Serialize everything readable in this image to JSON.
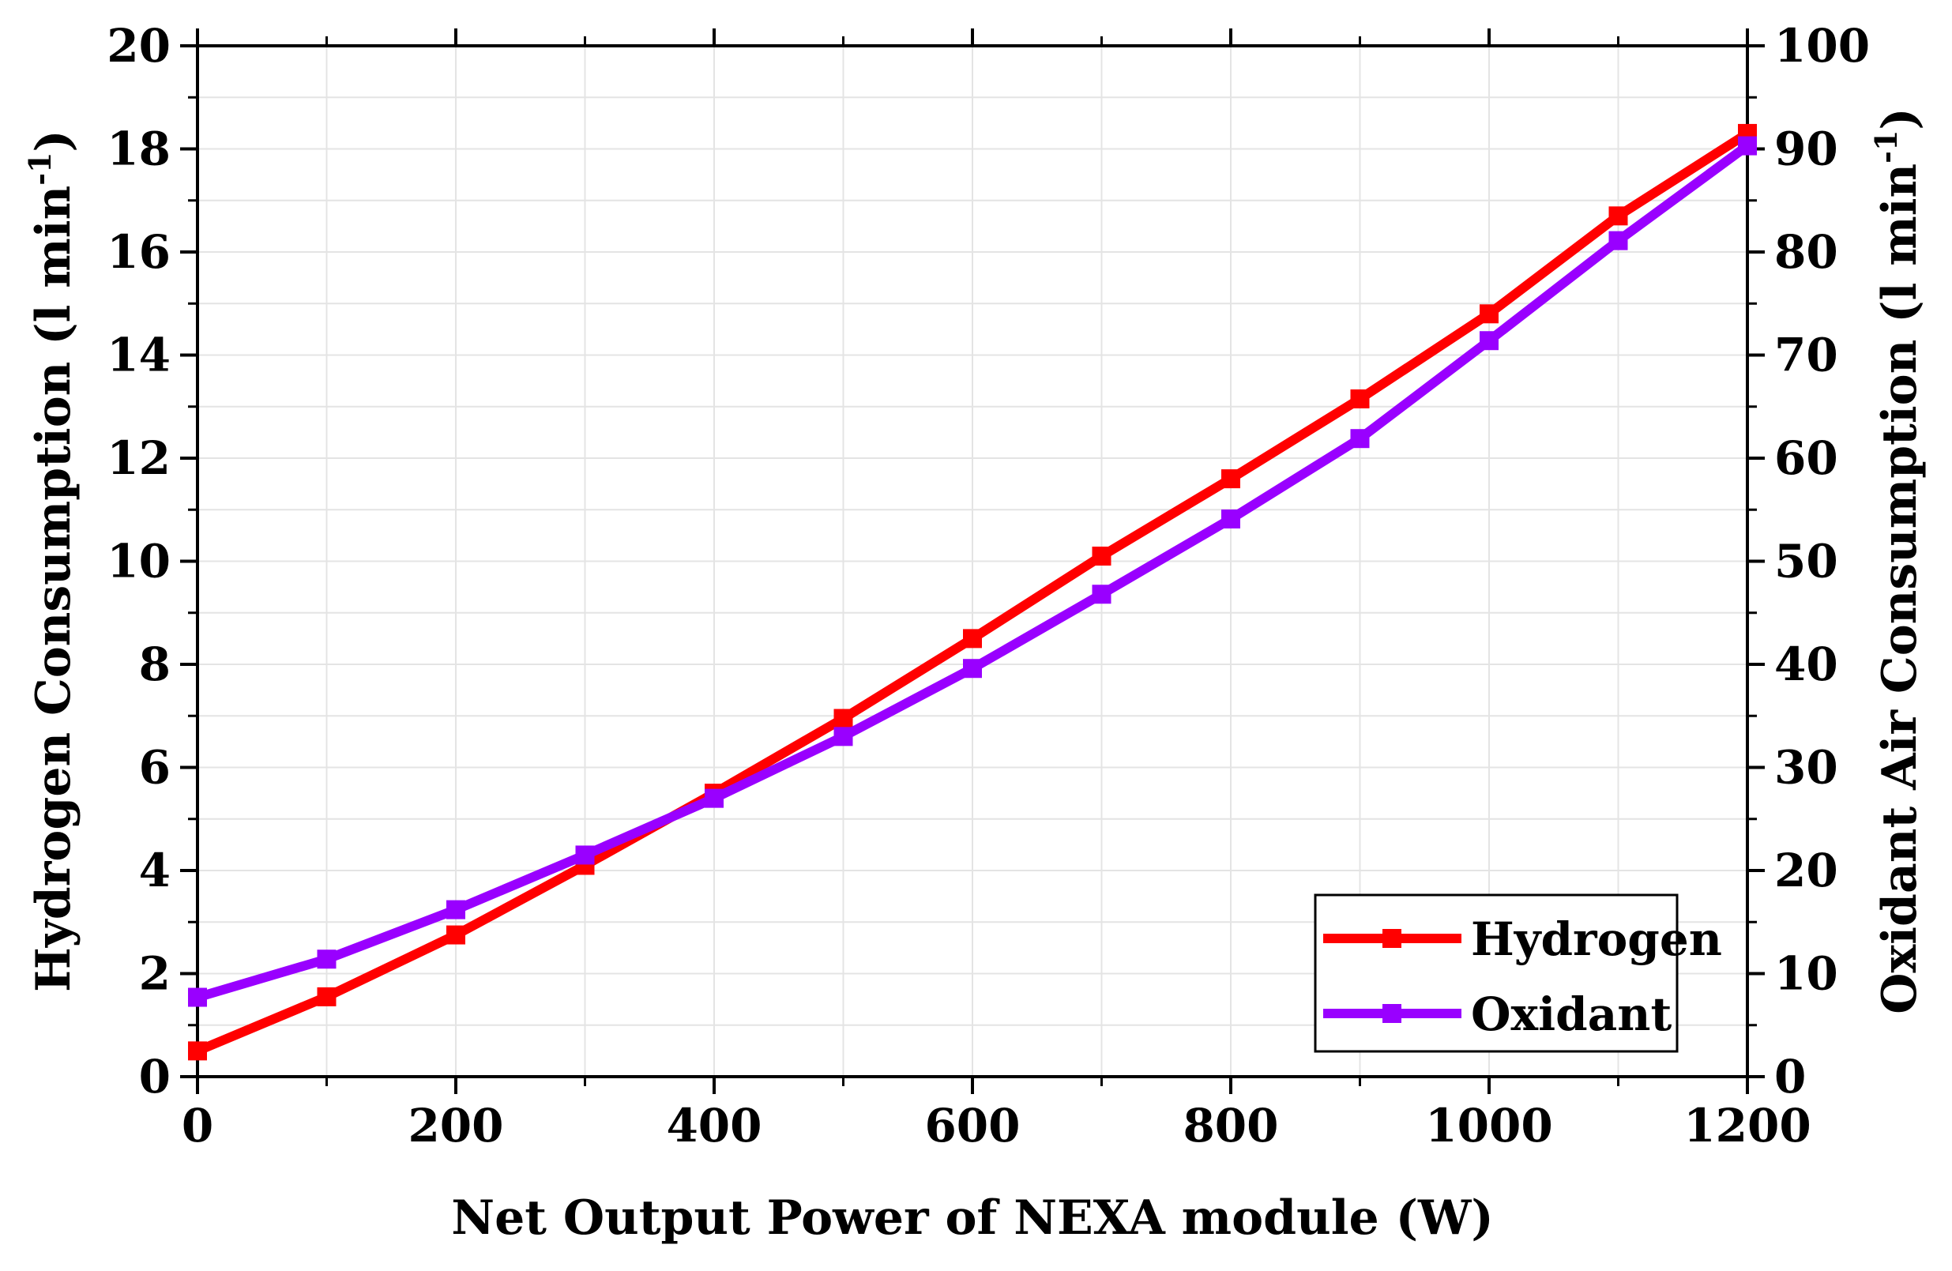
{
  "chart_data": {
    "type": "line",
    "title": "",
    "xlabel": "Net Output Power of NEXA module (W)",
    "ylabel_left": "Hydrogen Consumption (l min",
    "ylabel_right": "Oxidant Air Consumption (l min",
    "ylabel_sup": "-1",
    "ylabel_close": ")",
    "xlim": [
      0,
      1200
    ],
    "ylim_left": [
      0,
      20
    ],
    "ylim_right": [
      0,
      100
    ],
    "x_ticks": [
      "0",
      "200",
      "400",
      "600",
      "800",
      "1000",
      "1200"
    ],
    "y_left_ticks": [
      "0",
      "2",
      "4",
      "6",
      "8",
      "10",
      "12",
      "14",
      "16",
      "18",
      "20"
    ],
    "y_right_ticks": [
      "0",
      "10",
      "20",
      "30",
      "40",
      "50",
      "60",
      "70",
      "80",
      "90",
      "100"
    ],
    "grid": true,
    "legend_position": "bottom-right",
    "x": [
      0,
      100,
      200,
      300,
      400,
      500,
      600,
      700,
      800,
      900,
      1000,
      1100,
      1200
    ],
    "series": [
      {
        "name": "Hydrogen",
        "axis": "left",
        "color": "#ff0000",
        "values": [
          0.5,
          1.55,
          2.75,
          4.1,
          5.5,
          6.95,
          8.5,
          10.1,
          11.6,
          13.15,
          14.8,
          16.7,
          18.3
        ]
      },
      {
        "name": "Oxidant",
        "axis": "right",
        "color": "#9900ff",
        "values": [
          7.7,
          11.4,
          16.2,
          21.5,
          27.0,
          33.0,
          39.6,
          46.8,
          54.1,
          61.9,
          71.4,
          81.1,
          90.3
        ]
      }
    ]
  }
}
